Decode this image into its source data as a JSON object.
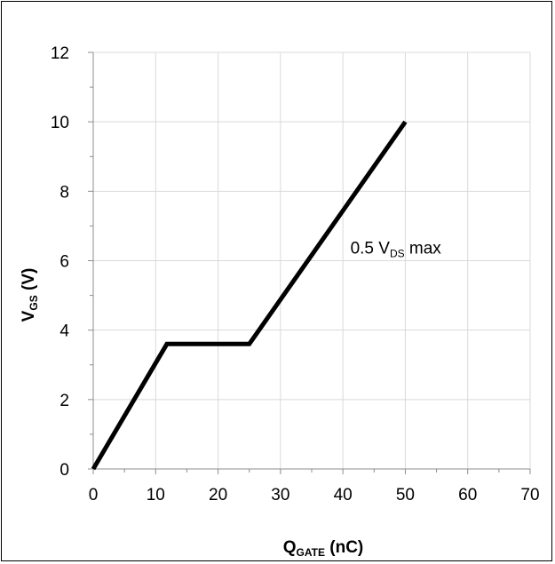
{
  "chart_data": {
    "type": "line",
    "xlabel": {
      "main": "Q",
      "sub": "GATE",
      "tail": " (nC)"
    },
    "ylabel": {
      "main": "V",
      "sub": "GS",
      "tail": " (V)"
    },
    "xlim": [
      0,
      70
    ],
    "ylim": [
      0,
      12
    ],
    "x_ticks": [
      0,
      10,
      20,
      30,
      40,
      50,
      60,
      70
    ],
    "y_ticks": [
      0,
      2,
      4,
      6,
      8,
      10,
      12
    ],
    "grid": true,
    "series": [
      {
        "x": [
          0,
          11.8,
          25,
          50
        ],
        "y": [
          0,
          3.6,
          3.6,
          10
        ],
        "color": "#000000"
      }
    ],
    "annotation": {
      "pre": "0.5 V",
      "sub": "DS",
      "post": " max",
      "x": 41.2,
      "y": 6.2
    }
  }
}
